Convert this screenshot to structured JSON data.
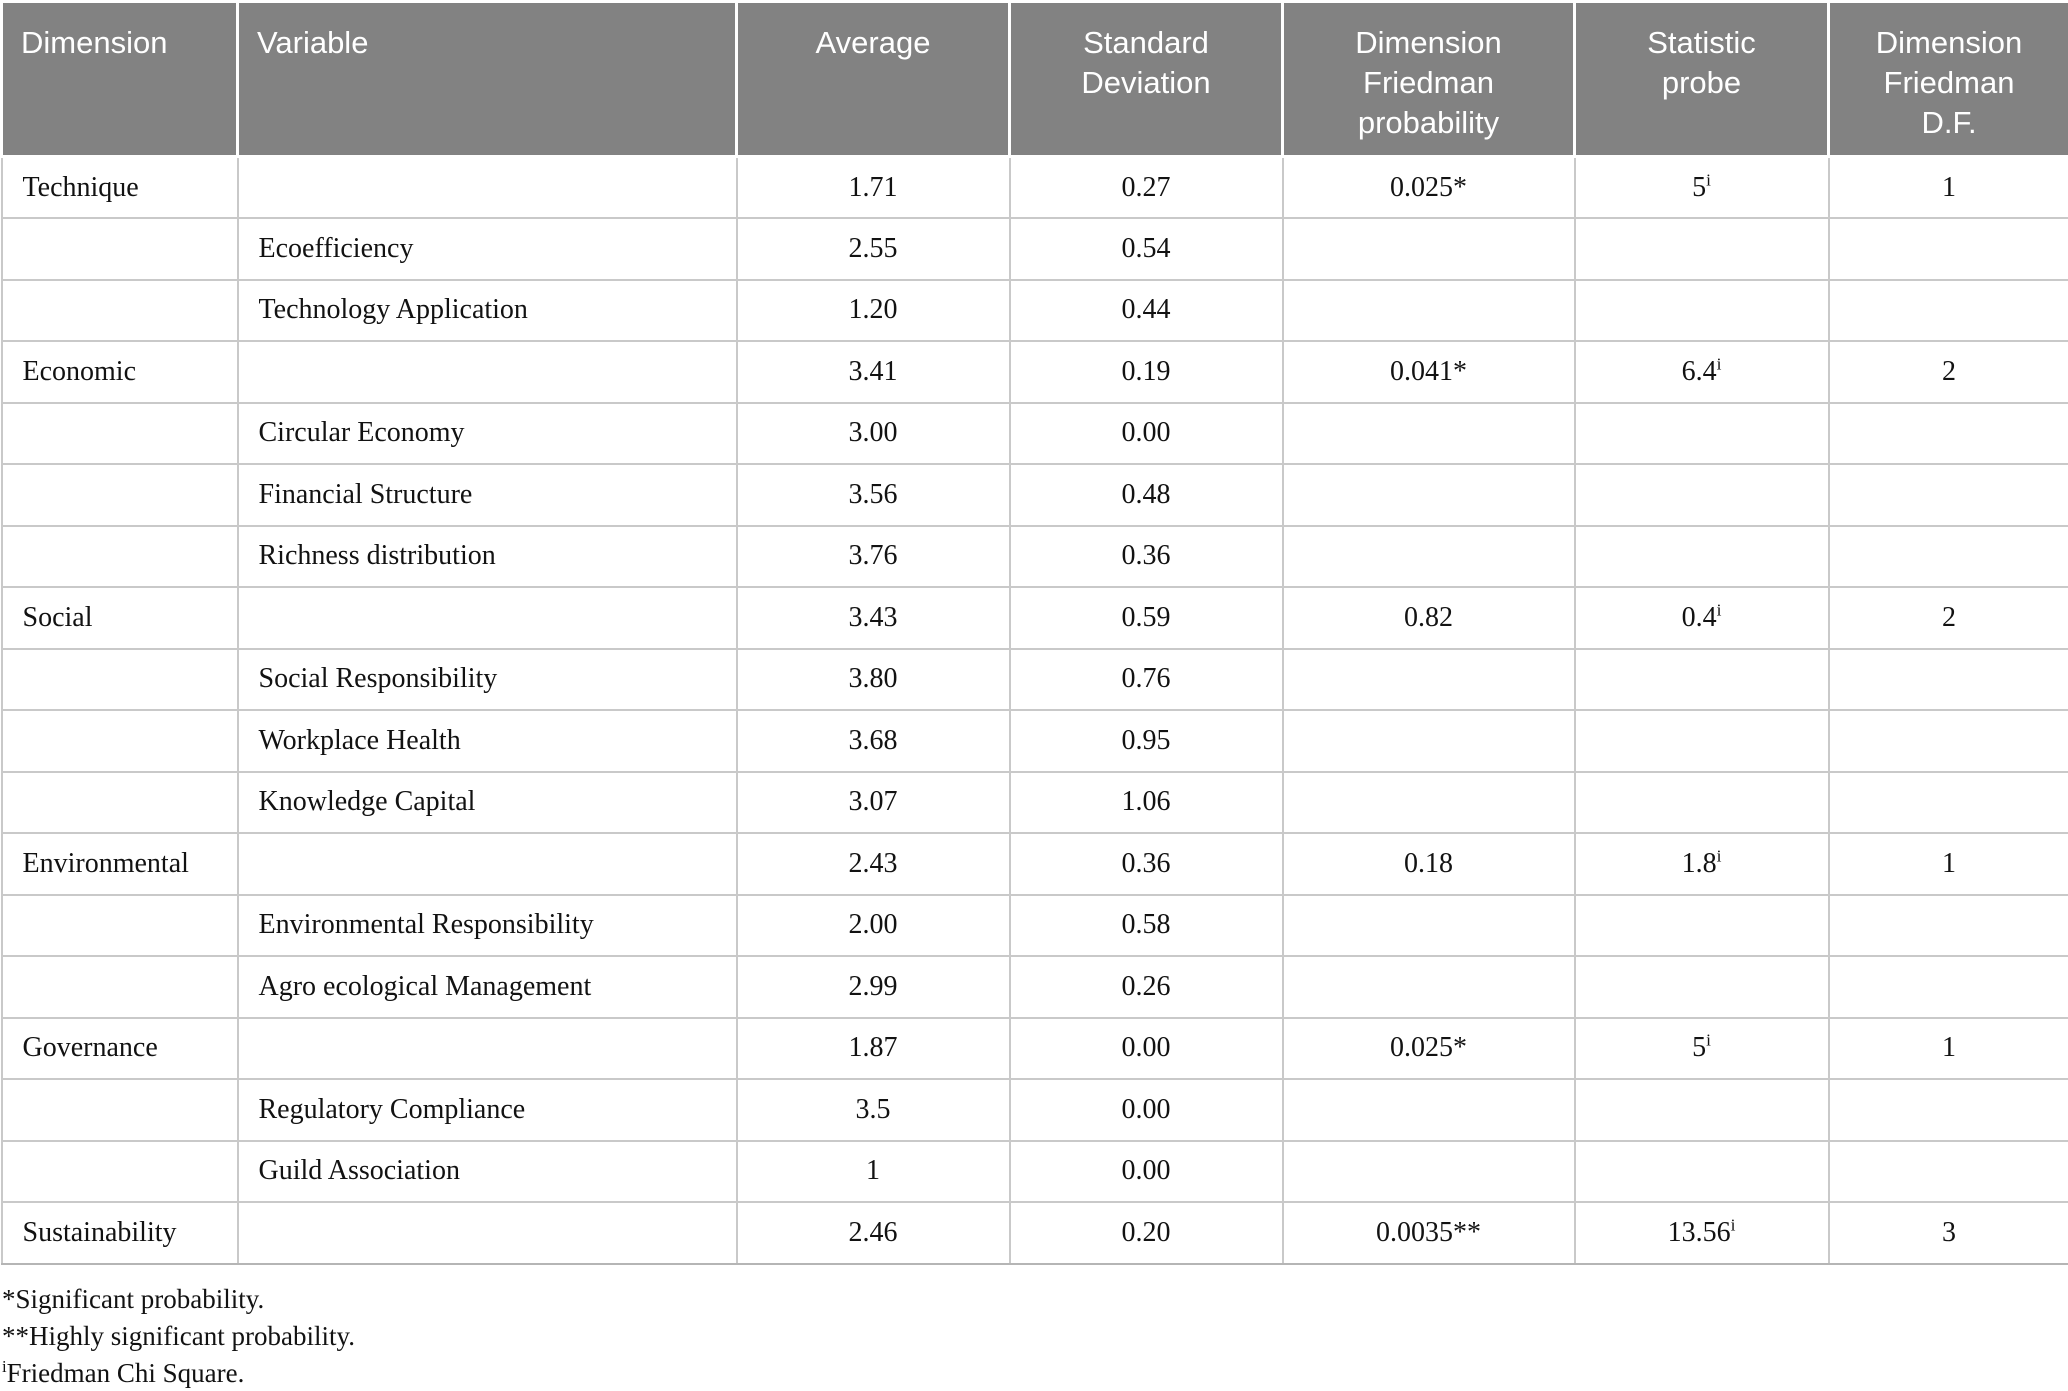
{
  "table": {
    "columns": [
      {
        "label": "Dimension",
        "align": "left"
      },
      {
        "label": "Variable",
        "align": "left"
      },
      {
        "label": "Average",
        "align": "center"
      },
      {
        "label": "Standard Deviation",
        "align": "center"
      },
      {
        "label": "Dimension Friedman probability",
        "align": "center"
      },
      {
        "label": "Statistic probe",
        "align": "center"
      },
      {
        "label": "Dimension Friedman D.F.",
        "align": "center"
      }
    ],
    "rows": [
      {
        "dimension": "Technique",
        "variable": "",
        "average": "1.71",
        "standard_deviation": "0.27",
        "friedman_probability": "0.025*",
        "statistic_probe": "5",
        "statistic_probe_sup": "i",
        "friedman_df": "1"
      },
      {
        "dimension": "",
        "variable": "Ecoefficiency",
        "average": "2.55",
        "standard_deviation": "0.54",
        "friedman_probability": "",
        "statistic_probe": "",
        "statistic_probe_sup": "",
        "friedman_df": ""
      },
      {
        "dimension": "",
        "variable": "Technology Application",
        "average": "1.20",
        "standard_deviation": "0.44",
        "friedman_probability": "",
        "statistic_probe": "",
        "statistic_probe_sup": "",
        "friedman_df": ""
      },
      {
        "dimension": "Economic",
        "variable": "",
        "average": "3.41",
        "standard_deviation": "0.19",
        "friedman_probability": "0.041*",
        "statistic_probe": "6.4",
        "statistic_probe_sup": "i",
        "friedman_df": "2"
      },
      {
        "dimension": "",
        "variable": "Circular Economy",
        "average": "3.00",
        "standard_deviation": "0.00",
        "friedman_probability": "",
        "statistic_probe": "",
        "statistic_probe_sup": "",
        "friedman_df": ""
      },
      {
        "dimension": "",
        "variable": "Financial Structure",
        "average": "3.56",
        "standard_deviation": "0.48",
        "friedman_probability": "",
        "statistic_probe": "",
        "statistic_probe_sup": "",
        "friedman_df": ""
      },
      {
        "dimension": "",
        "variable": "Richness distribution",
        "average": "3.76",
        "standard_deviation": "0.36",
        "friedman_probability": "",
        "statistic_probe": "",
        "statistic_probe_sup": "",
        "friedman_df": ""
      },
      {
        "dimension": "Social",
        "variable": "",
        "average": "3.43",
        "standard_deviation": "0.59",
        "friedman_probability": "0.82",
        "statistic_probe": "0.4",
        "statistic_probe_sup": "i",
        "friedman_df": "2"
      },
      {
        "dimension": "",
        "variable": "Social Responsibility",
        "average": "3.80",
        "standard_deviation": "0.76",
        "friedman_probability": "",
        "statistic_probe": "",
        "statistic_probe_sup": "",
        "friedman_df": ""
      },
      {
        "dimension": "",
        "variable": "Workplace Health",
        "average": "3.68",
        "standard_deviation": "0.95",
        "friedman_probability": "",
        "statistic_probe": "",
        "statistic_probe_sup": "",
        "friedman_df": ""
      },
      {
        "dimension": "",
        "variable": "Knowledge Capital",
        "average": "3.07",
        "standard_deviation": "1.06",
        "friedman_probability": "",
        "statistic_probe": "",
        "statistic_probe_sup": "",
        "friedman_df": ""
      },
      {
        "dimension": "Environmental",
        "variable": "",
        "average": "2.43",
        "standard_deviation": "0.36",
        "friedman_probability": "0.18",
        "statistic_probe": "1.8",
        "statistic_probe_sup": "i",
        "friedman_df": "1"
      },
      {
        "dimension": "",
        "variable": "Environmental Responsibility",
        "average": "2.00",
        "standard_deviation": "0.58",
        "friedman_probability": "",
        "statistic_probe": "",
        "statistic_probe_sup": "",
        "friedman_df": ""
      },
      {
        "dimension": "",
        "variable": "Agro ecological Management",
        "average": "2.99",
        "standard_deviation": "0.26",
        "friedman_probability": "",
        "statistic_probe": "",
        "statistic_probe_sup": "",
        "friedman_df": ""
      },
      {
        "dimension": "Governance",
        "variable": "",
        "average": "1.87",
        "standard_deviation": "0.00",
        "friedman_probability": "0.025*",
        "statistic_probe": "5",
        "statistic_probe_sup": "i",
        "friedman_df": "1"
      },
      {
        "dimension": "",
        "variable": "Regulatory Compliance",
        "average": "3.5",
        "standard_deviation": "0.00",
        "friedman_probability": "",
        "statistic_probe": "",
        "statistic_probe_sup": "",
        "friedman_df": ""
      },
      {
        "dimension": "",
        "variable": "Guild Association",
        "average": "1",
        "standard_deviation": "0.00",
        "friedman_probability": "",
        "statistic_probe": "",
        "statistic_probe_sup": "",
        "friedman_df": ""
      },
      {
        "dimension": "Sustainability",
        "variable": "",
        "average": "2.46",
        "standard_deviation": "0.20",
        "friedman_probability": "0.0035**",
        "statistic_probe": "13.56",
        "statistic_probe_sup": "i",
        "friedman_df": "3"
      }
    ],
    "footnotes": [
      {
        "sup": "",
        "text": "*Significant probability."
      },
      {
        "sup": "",
        "text": "**Highly significant probability."
      },
      {
        "sup": "i",
        "text": "Friedman Chi Square."
      }
    ]
  },
  "colors": {
    "header_bg": "#828282",
    "header_text": "#ffffff",
    "body_border": "#c9c9c9",
    "body_text": "#121212"
  }
}
